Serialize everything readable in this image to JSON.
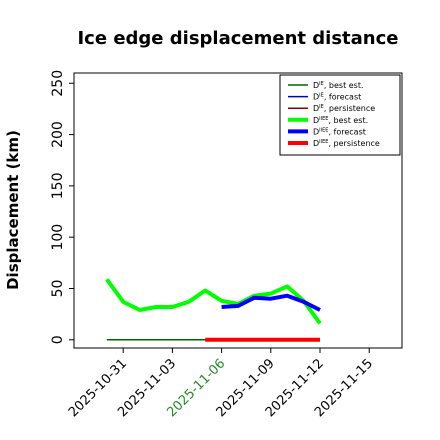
{
  "chart_data": {
    "type": "line",
    "title": "Ice edge displacement distance",
    "xlabel": "",
    "ylabel": "Displacement (km)",
    "ylim": [
      -8,
      260
    ],
    "xlim": [
      "2025-10-28",
      "2025-11-17"
    ],
    "yticks": [
      0,
      50,
      100,
      150,
      200,
      250
    ],
    "xticks": [
      "2025-10-31",
      "2025-11-03",
      "2025-11-06",
      "2025-11-09",
      "2025-11-12",
      "2025-11-15"
    ],
    "highlight_xtick": "2025-11-06",
    "highlight_color": "#228b22",
    "grid": false,
    "legend_position": "top-right",
    "series": [
      {
        "name": "D^IE, best est.",
        "legend_base": "D",
        "legend_sup": "IE",
        "legend_suffix": ", best est.",
        "color": "#006400",
        "style": "thin",
        "x": [
          "2025-10-30",
          "2025-10-31",
          "2025-11-01",
          "2025-11-02",
          "2025-11-03",
          "2025-11-04",
          "2025-11-05",
          "2025-11-06",
          "2025-11-07",
          "2025-11-08",
          "2025-11-09",
          "2025-11-10",
          "2025-11-11",
          "2025-11-12"
        ],
        "values": [
          0,
          0,
          0,
          0,
          0,
          0,
          0,
          0,
          0,
          0,
          0,
          0,
          0,
          0
        ]
      },
      {
        "name": "D^IE, forecast",
        "legend_base": "D",
        "legend_sup": "IE",
        "legend_suffix": ", forecast",
        "color": "#0000cd",
        "style": "thin",
        "x": [
          "2025-11-06",
          "2025-11-07",
          "2025-11-08",
          "2025-11-09",
          "2025-11-10",
          "2025-11-11",
          "2025-11-12"
        ],
        "values": [
          0,
          0,
          0,
          0,
          0,
          0,
          0
        ]
      },
      {
        "name": "D^IE, persistence",
        "legend_base": "D",
        "legend_sup": "IE",
        "legend_suffix": ", persistence",
        "color": "#8b0000",
        "style": "thin",
        "x": [
          "2025-11-06",
          "2025-11-07",
          "2025-11-08",
          "2025-11-09",
          "2025-11-10",
          "2025-11-11",
          "2025-11-12"
        ],
        "values": [
          0,
          0,
          0,
          0,
          0,
          0,
          0
        ]
      },
      {
        "name": "D^IIEE, best est.",
        "legend_base": "D",
        "legend_sup": "IIEE",
        "legend_suffix": ", best est.",
        "color": "#00ff00",
        "style": "thick",
        "x": [
          "2025-10-30",
          "2025-10-31",
          "2025-11-01",
          "2025-11-02",
          "2025-11-03",
          "2025-11-04",
          "2025-11-05",
          "2025-11-06",
          "2025-11-07",
          "2025-11-08",
          "2025-11-09",
          "2025-11-10",
          "2025-11-11",
          "2025-11-12"
        ],
        "values": [
          59,
          37,
          29,
          32,
          32,
          37,
          48,
          38,
          35,
          43,
          45,
          52,
          38,
          16
        ]
      },
      {
        "name": "D^IIEE, forecast",
        "legend_base": "D",
        "legend_sup": "IIEE",
        "legend_suffix": ", forecast",
        "color": "#0000ff",
        "style": "thick",
        "x": [
          "2025-11-06",
          "2025-11-07",
          "2025-11-08",
          "2025-11-09",
          "2025-11-10",
          "2025-11-11",
          "2025-11-12"
        ],
        "values": [
          32,
          33,
          41,
          40,
          43,
          37,
          29
        ]
      },
      {
        "name": "D^IIEE, persistence",
        "legend_base": "D",
        "legend_sup": "IIEE",
        "legend_suffix": ", persistence",
        "color": "#ff0000",
        "style": "thick",
        "x": [
          "2025-11-05",
          "2025-11-06",
          "2025-11-07",
          "2025-11-08",
          "2025-11-09",
          "2025-11-10",
          "2025-11-11",
          "2025-11-12"
        ],
        "values": [
          0,
          0,
          0,
          0,
          0,
          0,
          0,
          0
        ]
      }
    ]
  }
}
